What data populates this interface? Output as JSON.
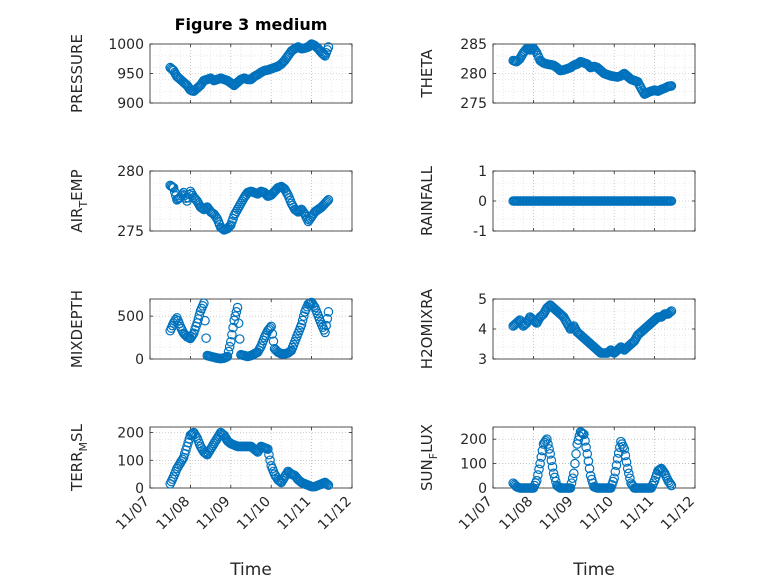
{
  "figure": {
    "title": "Figure 3 medium",
    "xlabel_left": "Time",
    "xlabel_right": "Time",
    "date_tick_labels": [
      "11/07",
      "11/08",
      "11/09",
      "11/10",
      "11/11",
      "11/12"
    ],
    "marker_color": "#0072BD",
    "grid_color": "#b0b0b0"
  },
  "chart_data": [
    {
      "type": "scatter",
      "title": "Figure 3 medium",
      "ylabel": "PRESSURE",
      "xlabel": "",
      "xlim": [
        "11/07",
        "11/12"
      ],
      "ylim": [
        900,
        1000
      ],
      "yticks": [
        900,
        950,
        1000
      ],
      "grid": true,
      "x": [
        "11/07 12:00",
        "11/07 14:00",
        "11/07 16:00",
        "11/07 18:00",
        "11/07 20:00",
        "11/07 22:00",
        "11/08 00:00",
        "11/08 02:00",
        "11/08 04:00",
        "11/08 06:00",
        "11/08 08:00",
        "11/08 10:00",
        "11/08 12:00",
        "11/08 14:00",
        "11/08 16:00",
        "11/08 18:00",
        "11/08 20:00",
        "11/08 22:00",
        "11/09 00:00",
        "11/09 02:00",
        "11/09 04:00",
        "11/09 06:00",
        "11/09 08:00",
        "11/09 10:00",
        "11/09 12:00",
        "11/09 14:00",
        "11/09 16:00",
        "11/09 18:00",
        "11/09 20:00",
        "11/09 22:00",
        "11/10 00:00",
        "11/10 02:00",
        "11/10 04:00",
        "11/10 06:00",
        "11/10 08:00",
        "11/10 10:00",
        "11/10 12:00",
        "11/10 14:00",
        "11/10 16:00",
        "11/10 18:00",
        "11/10 20:00",
        "11/10 22:00",
        "11/11 00:00",
        "11/11 02:00",
        "11/11 04:00",
        "11/11 06:00",
        "11/11 08:00",
        "11/11 10:00"
      ],
      "y": [
        960,
        955,
        945,
        940,
        935,
        930,
        922,
        920,
        925,
        930,
        938,
        940,
        942,
        938,
        940,
        942,
        940,
        938,
        934,
        930,
        935,
        940,
        942,
        940,
        940,
        945,
        948,
        952,
        955,
        956,
        958,
        960,
        962,
        966,
        972,
        980,
        988,
        992,
        995,
        992,
        993,
        995,
        1000,
        997,
        992,
        985,
        980,
        995
      ]
    },
    {
      "type": "scatter",
      "ylabel": "THETA",
      "xlabel": "",
      "xlim": [
        "11/07",
        "11/12"
      ],
      "ylim": [
        275,
        285
      ],
      "yticks": [
        275,
        280,
        285
      ],
      "grid": true,
      "x": [
        "11/07 12:00",
        "11/07 14:00",
        "11/07 16:00",
        "11/07 18:00",
        "11/07 20:00",
        "11/07 22:00",
        "11/08 00:00",
        "11/08 02:00",
        "11/08 04:00",
        "11/08 06:00",
        "11/08 08:00",
        "11/08 10:00",
        "11/08 12:00",
        "11/08 14:00",
        "11/08 16:00",
        "11/08 18:00",
        "11/08 20:00",
        "11/08 22:00",
        "11/09 00:00",
        "11/09 02:00",
        "11/09 04:00",
        "11/09 06:00",
        "11/09 08:00",
        "11/09 10:00",
        "11/09 12:00",
        "11/09 14:00",
        "11/09 16:00",
        "11/09 18:00",
        "11/09 20:00",
        "11/09 22:00",
        "11/10 00:00",
        "11/10 02:00",
        "11/10 04:00",
        "11/10 06:00",
        "11/10 08:00",
        "11/10 10:00",
        "11/10 12:00",
        "11/10 14:00",
        "11/10 16:00",
        "11/10 18:00",
        "11/10 20:00",
        "11/10 22:00",
        "11/11 00:00",
        "11/11 02:00",
        "11/11 04:00",
        "11/11 06:00",
        "11/11 08:00",
        "11/11 10:00"
      ],
      "y": [
        282.2,
        282.0,
        282.5,
        283.5,
        284.2,
        284.0,
        284.3,
        283.5,
        282.2,
        281.8,
        281.6,
        281.5,
        281.4,
        281.0,
        280.5,
        280.6,
        280.8,
        281.0,
        281.4,
        281.6,
        282.0,
        281.8,
        281.6,
        281.0,
        281.2,
        281.0,
        280.5,
        280.0,
        279.8,
        279.6,
        279.5,
        279.4,
        279.6,
        280.0,
        279.5,
        279.0,
        278.8,
        278.6,
        277.5,
        276.5,
        276.8,
        277.0,
        277.2,
        277.0,
        277.3,
        277.5,
        277.8,
        277.9
      ]
    },
    {
      "type": "scatter",
      "ylabel": "AIR_TEMP",
      "xlabel": "",
      "xlim": [
        "11/07",
        "11/12"
      ],
      "ylim": [
        275,
        280
      ],
      "yticks": [
        275,
        280
      ],
      "grid": true,
      "x": [
        "11/07 12:00",
        "11/07 14:00",
        "11/07 16:00",
        "11/07 18:00",
        "11/07 20:00",
        "11/07 22:00",
        "11/08 00:00",
        "11/08 02:00",
        "11/08 04:00",
        "11/08 06:00",
        "11/08 08:00",
        "11/08 10:00",
        "11/08 12:00",
        "11/08 14:00",
        "11/08 16:00",
        "11/08 18:00",
        "11/08 20:00",
        "11/08 22:00",
        "11/09 00:00",
        "11/09 02:00",
        "11/09 04:00",
        "11/09 06:00",
        "11/09 08:00",
        "11/09 10:00",
        "11/09 12:00",
        "11/09 14:00",
        "11/09 16:00",
        "11/09 18:00",
        "11/09 20:00",
        "11/09 22:00",
        "11/10 00:00",
        "11/10 02:00",
        "11/10 04:00",
        "11/10 06:00",
        "11/10 08:00",
        "11/10 10:00",
        "11/10 12:00",
        "11/10 14:00",
        "11/10 16:00",
        "11/10 18:00",
        "11/10 20:00",
        "11/10 22:00",
        "11/11 00:00",
        "11/11 02:00",
        "11/11 04:00",
        "11/11 06:00",
        "11/11 08:00",
        "11/11 10:00"
      ],
      "y": [
        278.8,
        278.6,
        277.6,
        277.8,
        278.2,
        277.5,
        278.3,
        277.8,
        277.5,
        277.0,
        276.8,
        277.0,
        276.6,
        276.4,
        276.0,
        275.3,
        275.1,
        275.2,
        275.5,
        276.3,
        276.8,
        277.3,
        277.8,
        278.2,
        278.3,
        278.2,
        278.1,
        278.3,
        278.2,
        277.9,
        278.0,
        278.3,
        278.6,
        278.7,
        278.5,
        278.0,
        277.3,
        276.8,
        276.6,
        276.8,
        276.4,
        275.8,
        276.2,
        276.6,
        276.8,
        277.0,
        277.3,
        277.6
      ]
    },
    {
      "type": "scatter",
      "ylabel": "RAINFALL",
      "xlabel": "",
      "xlim": [
        "11/07",
        "11/12"
      ],
      "ylim": [
        -1,
        1
      ],
      "yticks": [
        -1,
        0,
        1
      ],
      "grid": true,
      "x": [
        "11/07 12:00",
        "11/07 14:00",
        "11/07 16:00",
        "11/07 18:00",
        "11/07 20:00",
        "11/07 22:00",
        "11/08 00:00",
        "11/08 02:00",
        "11/08 04:00",
        "11/08 06:00",
        "11/08 08:00",
        "11/08 10:00",
        "11/08 12:00",
        "11/08 14:00",
        "11/08 16:00",
        "11/08 18:00",
        "11/08 20:00",
        "11/08 22:00",
        "11/09 00:00",
        "11/09 02:00",
        "11/09 04:00",
        "11/09 06:00",
        "11/09 08:00",
        "11/09 10:00",
        "11/09 12:00",
        "11/09 14:00",
        "11/09 16:00",
        "11/09 18:00",
        "11/09 20:00",
        "11/09 22:00",
        "11/10 00:00",
        "11/10 02:00",
        "11/10 04:00",
        "11/10 06:00",
        "11/10 08:00",
        "11/10 10:00",
        "11/10 12:00",
        "11/10 14:00",
        "11/10 16:00",
        "11/10 18:00",
        "11/10 20:00",
        "11/10 22:00",
        "11/11 00:00",
        "11/11 02:00",
        "11/11 04:00",
        "11/11 06:00",
        "11/11 08:00",
        "11/11 10:00"
      ],
      "y": [
        0,
        0,
        0,
        0,
        0,
        0,
        0,
        0,
        0,
        0,
        0,
        0,
        0,
        0,
        0,
        0,
        0,
        0,
        0,
        0,
        0,
        0,
        0,
        0,
        0,
        0,
        0,
        0,
        0,
        0,
        0,
        0,
        0,
        0,
        0,
        0,
        0,
        0,
        0,
        0,
        0,
        0,
        0,
        0,
        0,
        0,
        0,
        0
      ]
    },
    {
      "type": "scatter",
      "ylabel": "MIXDEPTH",
      "xlabel": "",
      "xlim": [
        "11/07",
        "11/12"
      ],
      "ylim": [
        0,
        700
      ],
      "yticks": [
        0,
        500
      ],
      "grid": true,
      "x": [
        "11/07 12:00",
        "11/07 14:00",
        "11/07 16:00",
        "11/07 18:00",
        "11/07 20:00",
        "11/07 22:00",
        "11/08 00:00",
        "11/08 02:00",
        "11/08 04:00",
        "11/08 06:00",
        "11/08 08:00",
        "11/08 10:00",
        "11/08 12:00",
        "11/08 14:00",
        "11/08 16:00",
        "11/08 18:00",
        "11/08 20:00",
        "11/08 22:00",
        "11/09 00:00",
        "11/09 02:00",
        "11/09 04:00",
        "11/09 06:00",
        "11/09 08:00",
        "11/09 10:00",
        "11/09 12:00",
        "11/09 14:00",
        "11/09 16:00",
        "11/09 18:00",
        "11/09 20:00",
        "11/09 22:00",
        "11/10 00:00",
        "11/10 02:00",
        "11/10 04:00",
        "11/10 06:00",
        "11/10 08:00",
        "11/10 10:00",
        "11/10 12:00",
        "11/10 14:00",
        "11/10 16:00",
        "11/10 18:00",
        "11/10 20:00",
        "11/10 22:00",
        "11/11 00:00",
        "11/11 02:00",
        "11/11 04:00",
        "11/11 06:00",
        "11/11 08:00",
        "11/11 10:00"
      ],
      "y": [
        330,
        420,
        480,
        380,
        300,
        260,
        240,
        300,
        420,
        560,
        650,
        40,
        30,
        20,
        10,
        5,
        10,
        30,
        200,
        450,
        600,
        50,
        40,
        30,
        40,
        60,
        80,
        150,
        250,
        330,
        380,
        120,
        80,
        60,
        60,
        70,
        100,
        200,
        300,
        400,
        550,
        640,
        660,
        600,
        500,
        400,
        310,
        550
      ]
    },
    {
      "type": "scatter",
      "ylabel": "H2OMIXRA",
      "xlabel": "",
      "xlim": [
        "11/07",
        "11/12"
      ],
      "ylim": [
        3,
        5
      ],
      "yticks": [
        3,
        4,
        5
      ],
      "grid": true,
      "x": [
        "11/07 12:00",
        "11/07 14:00",
        "11/07 16:00",
        "11/07 18:00",
        "11/07 20:00",
        "11/07 22:00",
        "11/08 00:00",
        "11/08 02:00",
        "11/08 04:00",
        "11/08 06:00",
        "11/08 08:00",
        "11/08 10:00",
        "11/08 12:00",
        "11/08 14:00",
        "11/08 16:00",
        "11/08 18:00",
        "11/08 20:00",
        "11/08 22:00",
        "11/09 00:00",
        "11/09 02:00",
        "11/09 04:00",
        "11/09 06:00",
        "11/09 08:00",
        "11/09 10:00",
        "11/09 12:00",
        "11/09 14:00",
        "11/09 16:00",
        "11/09 18:00",
        "11/09 20:00",
        "11/09 22:00",
        "11/10 00:00",
        "11/10 02:00",
        "11/10 04:00",
        "11/10 06:00",
        "11/10 08:00",
        "11/10 10:00",
        "11/10 12:00",
        "11/10 14:00",
        "11/10 16:00",
        "11/10 18:00",
        "11/10 20:00",
        "11/10 22:00",
        "11/11 00:00",
        "11/11 02:00",
        "11/11 04:00",
        "11/11 06:00",
        "11/11 08:00",
        "11/11 10:00"
      ],
      "y": [
        4.1,
        4.2,
        4.3,
        4.1,
        4.2,
        4.4,
        4.3,
        4.2,
        4.4,
        4.5,
        4.7,
        4.8,
        4.7,
        4.6,
        4.5,
        4.4,
        4.2,
        4.0,
        4.1,
        3.9,
        3.8,
        3.7,
        3.6,
        3.5,
        3.4,
        3.3,
        3.2,
        3.2,
        3.2,
        3.3,
        3.2,
        3.3,
        3.4,
        3.3,
        3.4,
        3.5,
        3.6,
        3.8,
        3.9,
        4.0,
        4.1,
        4.2,
        4.3,
        4.4,
        4.4,
        4.5,
        4.5,
        4.6
      ]
    },
    {
      "type": "scatter",
      "ylabel": "TERR_MSL",
      "xlabel": "",
      "xlim": [
        "11/07",
        "11/12"
      ],
      "ylim": [
        0,
        220
      ],
      "yticks": [
        0,
        100,
        200
      ],
      "grid": true,
      "x": [
        "11/07 12:00",
        "11/07 14:00",
        "11/07 16:00",
        "11/07 18:00",
        "11/07 20:00",
        "11/07 22:00",
        "11/08 00:00",
        "11/08 02:00",
        "11/08 04:00",
        "11/08 06:00",
        "11/08 08:00",
        "11/08 10:00",
        "11/08 12:00",
        "11/08 14:00",
        "11/08 16:00",
        "11/08 18:00",
        "11/08 20:00",
        "11/08 22:00",
        "11/09 00:00",
        "11/09 02:00",
        "11/09 04:00",
        "11/09 06:00",
        "11/09 08:00",
        "11/09 10:00",
        "11/09 12:00",
        "11/09 14:00",
        "11/09 16:00",
        "11/09 18:00",
        "11/09 20:00",
        "11/09 22:00",
        "11/10 00:00",
        "11/10 02:00",
        "11/10 04:00",
        "11/10 06:00",
        "11/10 08:00",
        "11/10 10:00",
        "11/10 12:00",
        "11/10 14:00",
        "11/10 16:00",
        "11/10 18:00",
        "11/10 20:00",
        "11/10 22:00",
        "11/11 00:00",
        "11/11 02:00",
        "11/11 04:00",
        "11/11 06:00",
        "11/11 08:00",
        "11/11 10:00"
      ],
      "y": [
        15,
        40,
        70,
        90,
        110,
        150,
        190,
        200,
        180,
        150,
        130,
        120,
        140,
        160,
        180,
        200,
        190,
        170,
        160,
        155,
        150,
        150,
        150,
        150,
        150,
        140,
        130,
        150,
        145,
        140,
        80,
        50,
        30,
        20,
        40,
        60,
        50,
        45,
        30,
        20,
        15,
        10,
        5,
        5,
        10,
        15,
        20,
        10
      ]
    },
    {
      "type": "scatter",
      "ylabel": "SUN_FLUX",
      "xlabel": "",
      "xlim": [
        "11/07",
        "11/12"
      ],
      "ylim": [
        0,
        250
      ],
      "yticks": [
        0,
        100,
        200
      ],
      "grid": true,
      "x": [
        "11/07 12:00",
        "11/07 14:00",
        "11/07 16:00",
        "11/07 18:00",
        "11/07 20:00",
        "11/07 22:00",
        "11/08 00:00",
        "11/08 02:00",
        "11/08 04:00",
        "11/08 06:00",
        "11/08 08:00",
        "11/08 10:00",
        "11/08 12:00",
        "11/08 14:00",
        "11/08 16:00",
        "11/08 18:00",
        "11/08 20:00",
        "11/08 22:00",
        "11/09 00:00",
        "11/09 02:00",
        "11/09 04:00",
        "11/09 06:00",
        "11/09 08:00",
        "11/09 10:00",
        "11/09 12:00",
        "11/09 14:00",
        "11/09 16:00",
        "11/09 18:00",
        "11/09 20:00",
        "11/09 22:00",
        "11/10 00:00",
        "11/10 02:00",
        "11/10 04:00",
        "11/10 06:00",
        "11/10 08:00",
        "11/10 10:00",
        "11/10 12:00",
        "11/10 14:00",
        "11/10 16:00",
        "11/10 18:00",
        "11/10 20:00",
        "11/10 22:00",
        "11/11 00:00",
        "11/11 02:00",
        "11/11 04:00",
        "11/11 06:00",
        "11/11 08:00",
        "11/11 10:00"
      ],
      "y": [
        20,
        5,
        0,
        0,
        0,
        0,
        0,
        30,
        100,
        180,
        200,
        140,
        60,
        10,
        0,
        0,
        0,
        0,
        60,
        180,
        230,
        220,
        140,
        50,
        5,
        0,
        0,
        0,
        0,
        0,
        40,
        120,
        190,
        160,
        80,
        20,
        0,
        0,
        0,
        0,
        0,
        0,
        30,
        70,
        80,
        60,
        30,
        10
      ]
    }
  ]
}
